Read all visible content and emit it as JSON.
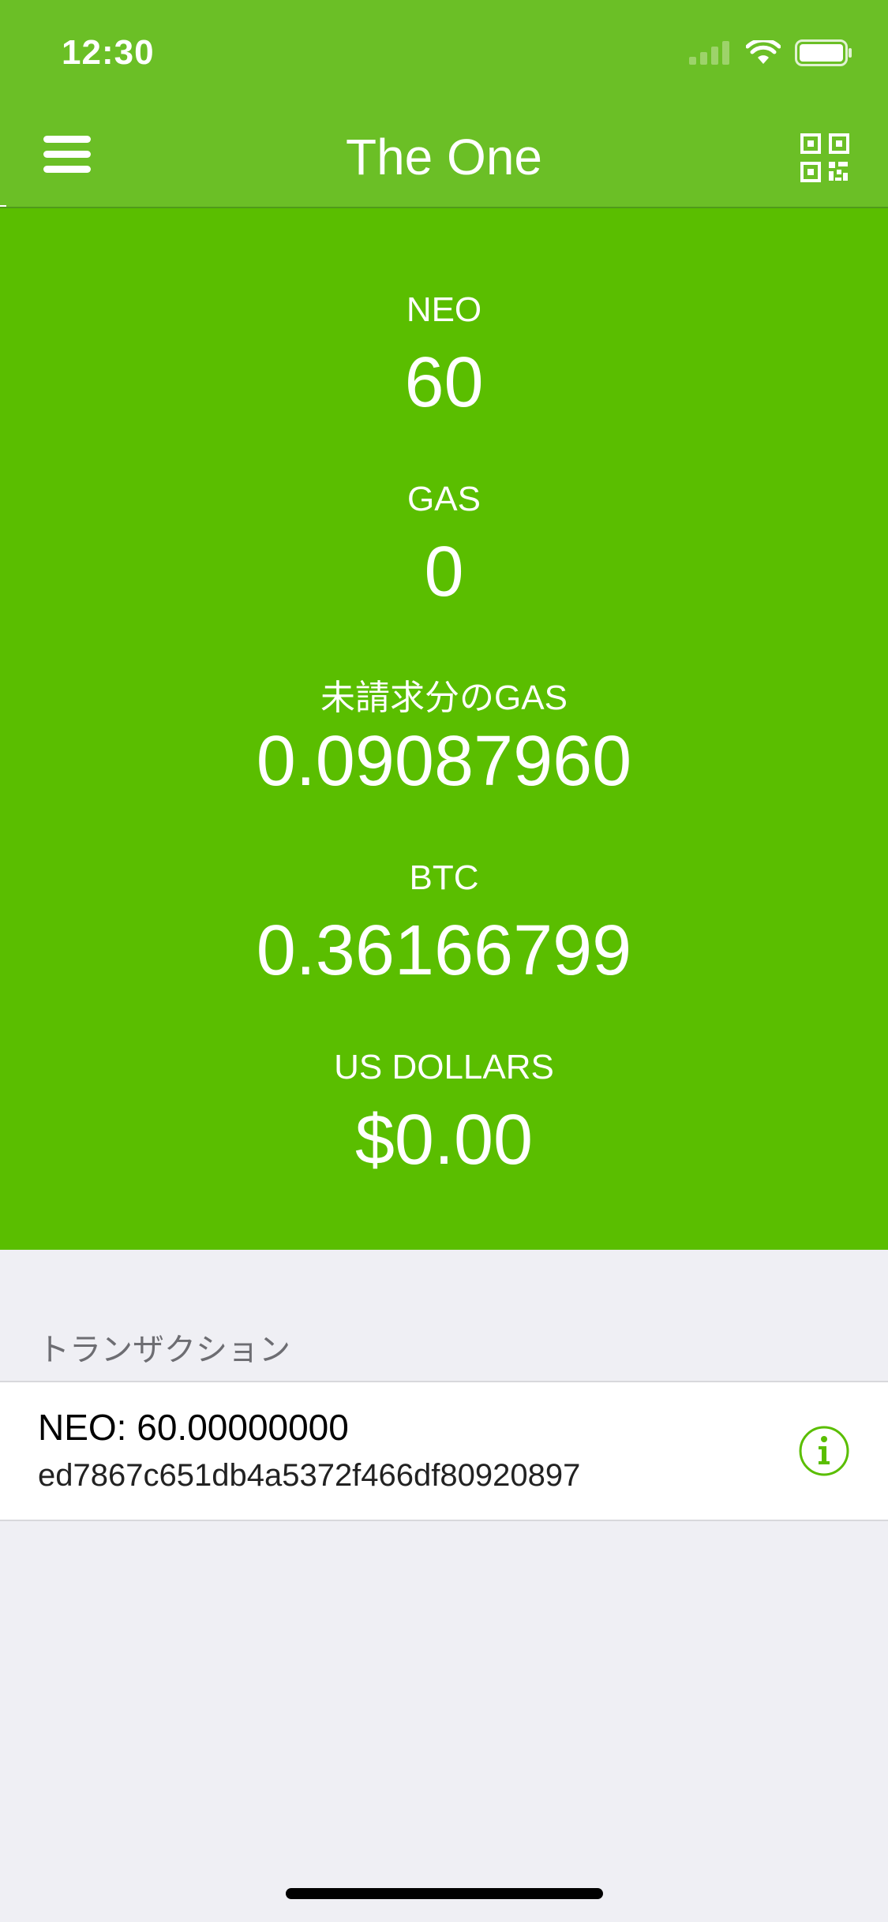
{
  "status_bar": {
    "time": "12:30"
  },
  "nav": {
    "title": "The One",
    "left_icon": "hamburger-menu-icon",
    "right_icon": "qr-code-icon"
  },
  "balances": [
    {
      "label": "NEO",
      "value": "60"
    },
    {
      "label": "GAS",
      "value": "0"
    },
    {
      "label": "未請求分のGAS",
      "value": "0.09087960"
    },
    {
      "label": "BTC",
      "value": "0.36166799"
    },
    {
      "label": "US DOLLARS",
      "value": "$0.00"
    }
  ],
  "transactions": {
    "header": "トランザクション",
    "items": [
      {
        "amount": "NEO: 60.00000000",
        "hash": "ed7867c651db4a5372f466df80920897",
        "icon": "info-icon"
      }
    ]
  },
  "colors": {
    "header": "#6bbf26",
    "balances_bg": "#5abe00",
    "page_bg": "#efeff4",
    "accent": "#5abe00"
  }
}
